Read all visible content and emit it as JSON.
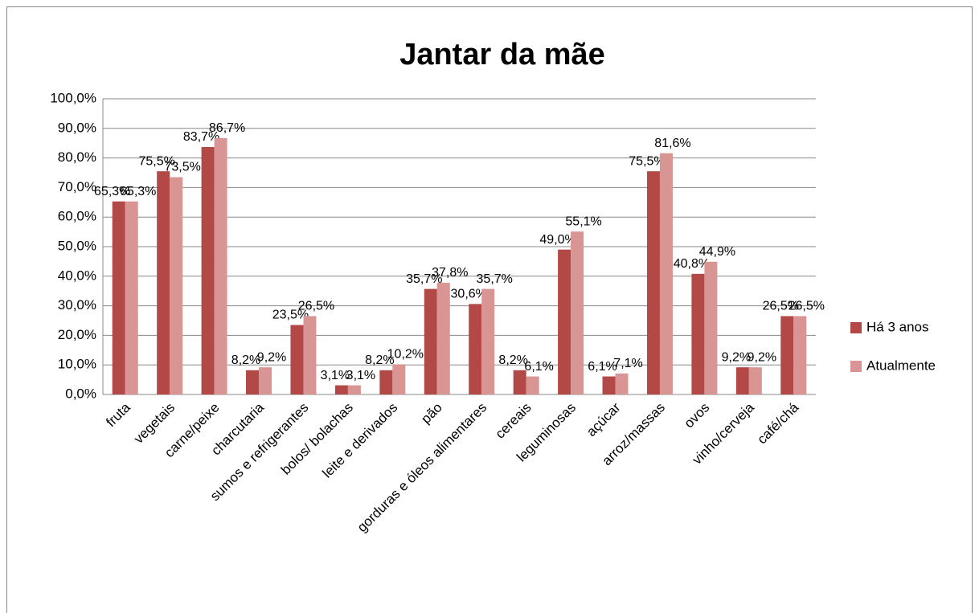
{
  "chart_data": {
    "type": "bar",
    "title": "Jantar da mãe",
    "categories": [
      "fruta",
      "vegetais",
      "carne/peixe",
      "charcutaria",
      "sumos e refrigerantes",
      "bolos/ bolachas",
      "leite e derivados",
      "pão",
      "gorduras e óleos alimentares",
      "cereais",
      "leguminosas",
      "açúcar",
      "arroz/massas",
      "ovos",
      "vinho/cerveja",
      "café/chá"
    ],
    "series": [
      {
        "name": "Há 3 anos",
        "color": "#b24947",
        "values": [
          65.3,
          75.5,
          83.7,
          8.2,
          23.5,
          3.1,
          8.2,
          35.7,
          30.6,
          8.2,
          49.0,
          6.1,
          75.5,
          40.8,
          9.2,
          26.5
        ],
        "value_labels": [
          "65,3%",
          "75,5%",
          "83,7%",
          "8,2%",
          "23,5%",
          "3,1%",
          "8,2%",
          "35,7%",
          "30,6%",
          "8,2%",
          "49,0%",
          "6,1%",
          "75,5%",
          "40,8%",
          "9,2%",
          "26,5%"
        ]
      },
      {
        "name": "Atualmente",
        "color": "#d99593",
        "values": [
          65.3,
          73.5,
          86.7,
          9.2,
          26.5,
          3.1,
          10.2,
          37.8,
          35.7,
          6.1,
          55.1,
          7.1,
          81.6,
          44.9,
          9.2,
          26.5
        ],
        "value_labels": [
          "65,3%",
          "73,5%",
          "86,7%",
          "9,2%",
          "26,5%",
          "3,1%",
          "10,2%",
          "37,8%",
          "35,7%",
          "6,1%",
          "55,1%",
          "7,1%",
          "81,6%",
          "44,9%",
          "9,2%",
          "26,5%"
        ]
      }
    ],
    "ylim": [
      0,
      100
    ],
    "yticks": [
      {
        "value": 0,
        "label": "0,0%"
      },
      {
        "value": 10,
        "label": "10,0%"
      },
      {
        "value": 20,
        "label": "20,0%"
      },
      {
        "value": 30,
        "label": "30,0%"
      },
      {
        "value": 40,
        "label": "40,0%"
      },
      {
        "value": 50,
        "label": "50,0%"
      },
      {
        "value": 60,
        "label": "60,0%"
      },
      {
        "value": 70,
        "label": "70,0%"
      },
      {
        "value": 80,
        "label": "80,0%"
      },
      {
        "value": 90,
        "label": "90,0%"
      },
      {
        "value": 100,
        "label": "100,0%"
      }
    ],
    "grid": true,
    "legend": "right"
  }
}
